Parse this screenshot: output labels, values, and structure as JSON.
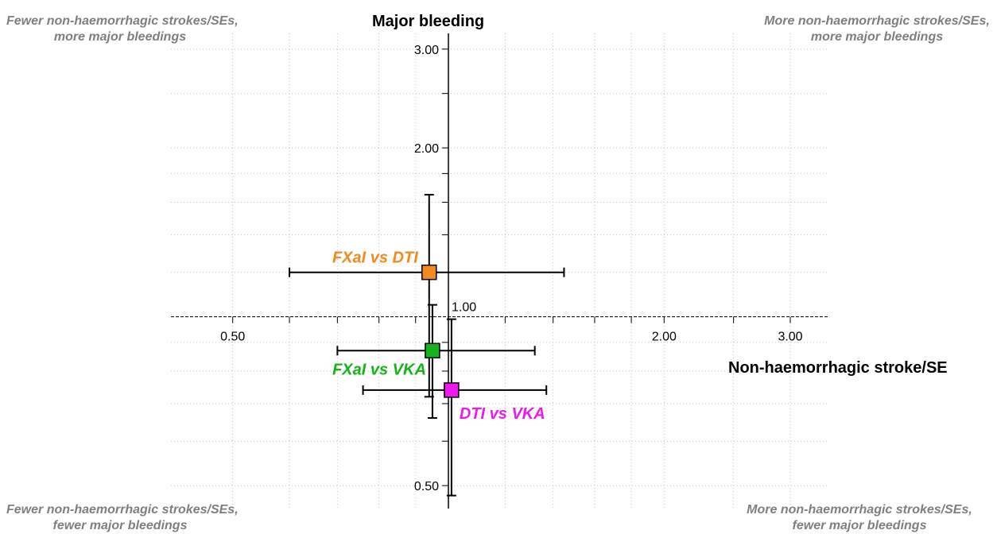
{
  "corners": {
    "top_left": [
      "Fewer non-haemorrhagic strokes/SEs,",
      "more major bleedings"
    ],
    "top_right": [
      "More non-haemorrhagic strokes/SEs,",
      "more major bleedings"
    ],
    "bottom_left": [
      "Fewer non-haemorrhagic strokes/SEs,",
      "fewer major bleedings"
    ],
    "bottom_right": [
      "More non-haemorrhagic strokes/SEs,",
      "fewer major bleedings"
    ],
    "color": "#7f7f7f"
  },
  "chart_data": {
    "type": "scatter",
    "xlabel": "Non-haemorrhagic stroke/SE",
    "ylabel": "Major bleeding",
    "x_scale": "log",
    "y_scale": "log",
    "xlim": [
      0.41,
      3.4
    ],
    "ylim": [
      0.455,
      3.2
    ],
    "x_ticks": [
      {
        "value": 0.5,
        "label": "0.50"
      },
      {
        "value": 1.0,
        "label": "1.00"
      },
      {
        "value": 2.0,
        "label": "2.00"
      },
      {
        "value": 3.0,
        "label": "3.00"
      }
    ],
    "x_minor_ticks": [
      0.6,
      0.7,
      0.8,
      0.9,
      1.2,
      1.4,
      1.6,
      1.8,
      2.5
    ],
    "y_ticks": [
      {
        "value": 0.5,
        "label": "0.50"
      },
      {
        "value": 2.0,
        "label": "2.00"
      },
      {
        "value": 3.0,
        "label": "3.00"
      }
    ],
    "y_minor_ticks": [
      0.6,
      0.7,
      0.8,
      0.9,
      1.2,
      1.4,
      1.6,
      1.8,
      2.5
    ],
    "reference_value": 1.0,
    "grid": true,
    "series": [
      {
        "name": "FXaI vs DTI",
        "x": 0.94,
        "x_ci": [
          0.6,
          1.45
        ],
        "y": 1.2,
        "y_ci": [
          0.72,
          1.65
        ],
        "color": "#f28a1d",
        "label_position": "upper-left"
      },
      {
        "name": "FXaI vs VKA",
        "x": 0.95,
        "x_ci": [
          0.7,
          1.32
        ],
        "y": 0.87,
        "y_ci": [
          0.66,
          1.05
        ],
        "color": "#16b21c",
        "label_position": "lower-left"
      },
      {
        "name": "DTI vs VKA",
        "x": 1.01,
        "x_ci": [
          0.76,
          1.37
        ],
        "y": 0.74,
        "y_ci": [
          0.48,
          0.99
        ],
        "color": "#ee19ee",
        "label_position": "lower-right"
      }
    ]
  }
}
